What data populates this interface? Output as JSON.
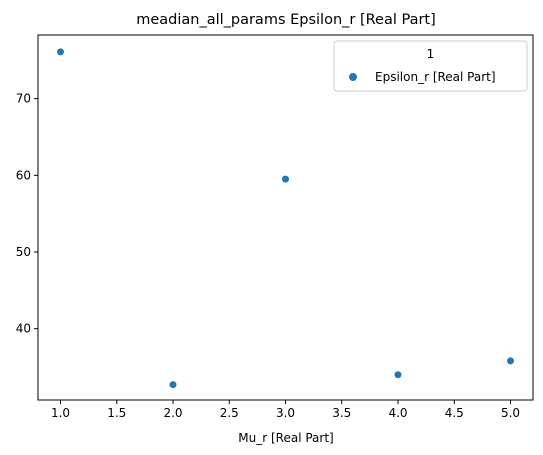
{
  "chart_data": {
    "type": "scatter",
    "title": "meadian_all_params Epsilon_r [Real Part]",
    "xlabel": "Mu_r [Real Part]",
    "ylabel": "",
    "xlim": [
      0.8,
      5.2
    ],
    "ylim": [
      30.7,
      78.3
    ],
    "xticks": [
      1.0,
      1.5,
      2.0,
      2.5,
      3.0,
      3.5,
      4.0,
      4.5,
      5.0
    ],
    "xtick_labels": [
      "1.0",
      "1.5",
      "2.0",
      "2.5",
      "3.0",
      "3.5",
      "4.0",
      "4.5",
      "5.0"
    ],
    "yticks": [
      40,
      50,
      60,
      70
    ],
    "ytick_labels": [
      "40",
      "50",
      "60",
      "70"
    ],
    "grid": false,
    "legend": {
      "title": "1",
      "placement": "upper right",
      "entries": [
        "Epsilon_r [Real Part]"
      ]
    },
    "series": [
      {
        "name": "Epsilon_r [Real Part]",
        "color": "#1f77b4",
        "x": [
          1.0,
          2.0,
          3.0,
          4.0,
          5.0
        ],
        "y": [
          76.1,
          32.7,
          59.5,
          34.0,
          35.8
        ]
      }
    ]
  }
}
